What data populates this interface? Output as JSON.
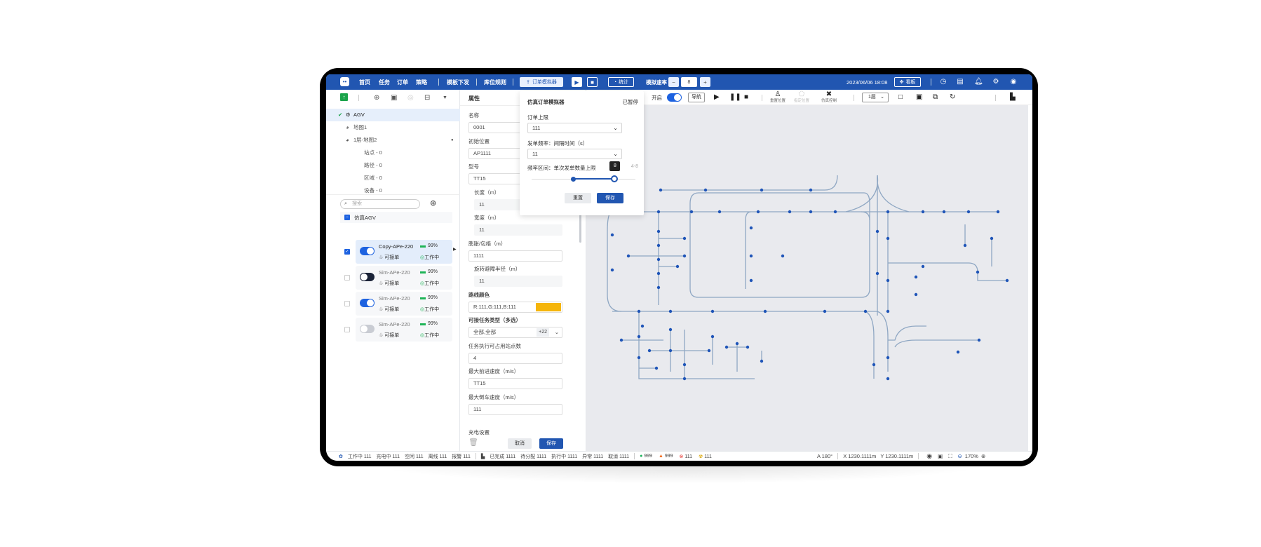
{
  "header": {
    "nav": [
      "首页",
      "任务",
      "订单",
      "策略",
      "模板下发",
      "库位规则"
    ],
    "order_sim_label": "订单模拟器",
    "stats_label": "统计",
    "speed_label": "模拟速率",
    "speed_value": "8",
    "minus": "−",
    "plus": "+",
    "datetime": "2023/06/06 18:08",
    "board_label": "看板",
    "icons": [
      "clock-icon",
      "book-icon",
      "bell-icon",
      "gear-icon",
      "user-icon"
    ],
    "brand_color": "#2156b1"
  },
  "tree": {
    "items": [
      {
        "label": "AGV",
        "selected": true
      },
      {
        "label": "地图1"
      },
      {
        "label": "1层-地图2"
      },
      {
        "label": "站点 - 0"
      },
      {
        "label": "路径 - 0"
      },
      {
        "label": "区域 - 0"
      },
      {
        "label": "设备 - 0"
      }
    ]
  },
  "agv_list": {
    "search_placeholder": "搜索",
    "group_label": "仿真AGV",
    "items": [
      {
        "name": "Copy-APe-220",
        "battery": "99%",
        "accept": "可接单",
        "state": "工作中",
        "checked": true,
        "enabled": true,
        "toggle_color": "#1d62e0",
        "selected": true
      },
      {
        "name": "Sim-APe-220",
        "battery": "99%",
        "accept": "可接单",
        "state": "工作中",
        "checked": false,
        "enabled": false,
        "toggle_color": "#1b2338"
      },
      {
        "name": "Sim-APe-220",
        "battery": "99%",
        "accept": "可接单",
        "state": "工作中",
        "checked": false,
        "enabled": true,
        "toggle_color": "#1d62e0"
      },
      {
        "name": "Sim-APe-220",
        "battery": "99%",
        "accept": "可接单",
        "state": "工作中",
        "checked": false,
        "enabled": false,
        "toggle_color": "#c9ccd3"
      }
    ]
  },
  "props": {
    "title": "属性",
    "fields": [
      {
        "label": "名称",
        "value": "0001",
        "type": "input"
      },
      {
        "label": "初始位置",
        "value": "AP1111",
        "type": "input"
      },
      {
        "label": "型号",
        "value": "TT15",
        "type": "input"
      },
      {
        "label": "长度（m）",
        "value": "11",
        "type": "readonly"
      },
      {
        "label": "宽度（m）",
        "value": "11",
        "type": "readonly"
      },
      {
        "label": "膨胀/包络（m）",
        "value": "1111",
        "type": "input"
      },
      {
        "label": "旋转避障半径（m）",
        "value": "11",
        "type": "readonly"
      },
      {
        "label": "路线颜色",
        "value": "R:111,G:111,B:111",
        "type": "color",
        "color": "#f5b50a"
      },
      {
        "label": "可接任务类型（多选）",
        "value": "全部,全部",
        "type": "multi",
        "extra": "+22"
      },
      {
        "label": "任务执行可占用站点数",
        "value": "4",
        "type": "input"
      },
      {
        "label": "最大前进速度（m/s）",
        "value": "TT15",
        "type": "input"
      },
      {
        "label": "最大倒车速度（m/s）",
        "value": "111",
        "type": "input"
      }
    ],
    "charge_label": "充电设置",
    "cancel": "取消",
    "save": "保存"
  },
  "popup": {
    "title": "仿真订单模拟器",
    "status": "已暂停",
    "order_limit_label": "订单上限",
    "order_limit_value": "111",
    "freq_label": "发单频率：间隔时间（s）",
    "freq_value": "11",
    "range_label": "频率区间：单次发单数量上限",
    "range_text": "4-8",
    "range_values": [
      4,
      8
    ],
    "tooltip": "8",
    "reset": "重置",
    "save": "保存"
  },
  "map_toolbar": {
    "auto_label": "开启",
    "auto_on": true,
    "nav_label": "导航",
    "reset_pos": "重置位置",
    "set_pos": "指定位置",
    "sim_ctrl": "仿真控制",
    "floor": "1层"
  },
  "status": {
    "agv": [
      {
        "label": "工作中",
        "value": "111"
      },
      {
        "label": "充电中",
        "value": "111"
      },
      {
        "label": "空闲",
        "value": "111"
      },
      {
        "label": "离线",
        "value": "111"
      },
      {
        "label": "报警",
        "value": "111"
      }
    ],
    "tasks": [
      {
        "label": "已完成",
        "value": "1111"
      },
      {
        "label": "待分配",
        "value": "1111"
      },
      {
        "label": "执行中",
        "value": "1111"
      },
      {
        "label": "异常",
        "value": "1111"
      },
      {
        "label": "取消",
        "value": "1111"
      }
    ],
    "alerts": [
      {
        "icon": "ok-icon",
        "value": "999",
        "color": "#19b35a"
      },
      {
        "icon": "warning-icon",
        "value": "999",
        "color": "#f26b1d"
      },
      {
        "icon": "error-icon",
        "value": "111",
        "color": "#e5322d"
      },
      {
        "icon": "radiation-icon",
        "value": "111",
        "color": "#d9a400"
      }
    ],
    "angle": "A 180°",
    "x": "X 1230.1111m",
    "y": "Y 1230.1111m",
    "zoom": "170%"
  }
}
